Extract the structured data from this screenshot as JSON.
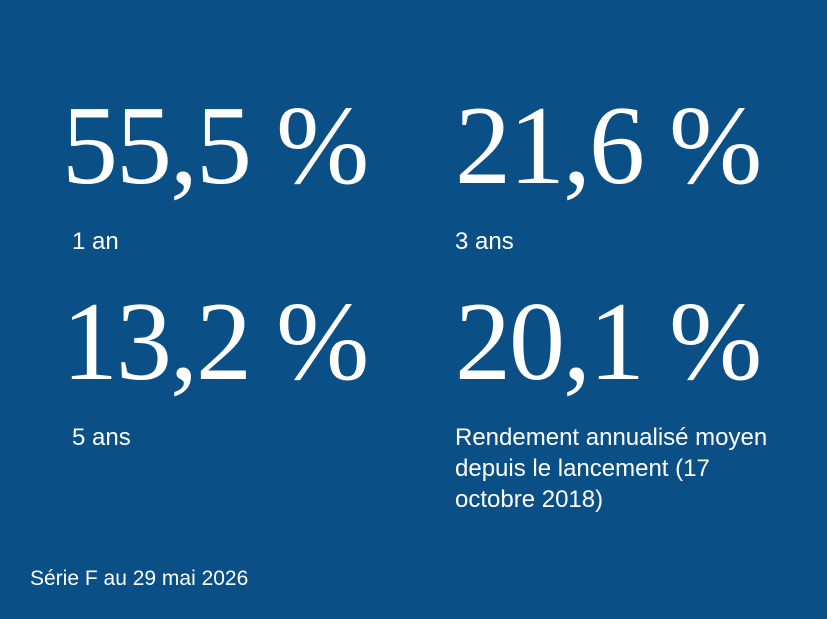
{
  "stats": [
    {
      "value": "55,5 %",
      "label": "1 an"
    },
    {
      "value": "21,6 %",
      "label": "3 ans"
    },
    {
      "value": "13,2 %",
      "label": "5 ans"
    },
    {
      "value": "20,1 %",
      "label": "Rendement annualisé moyen depuis le lancement (17 octobre 2018)"
    }
  ],
  "footer": "Série F au 29 mai 2026"
}
